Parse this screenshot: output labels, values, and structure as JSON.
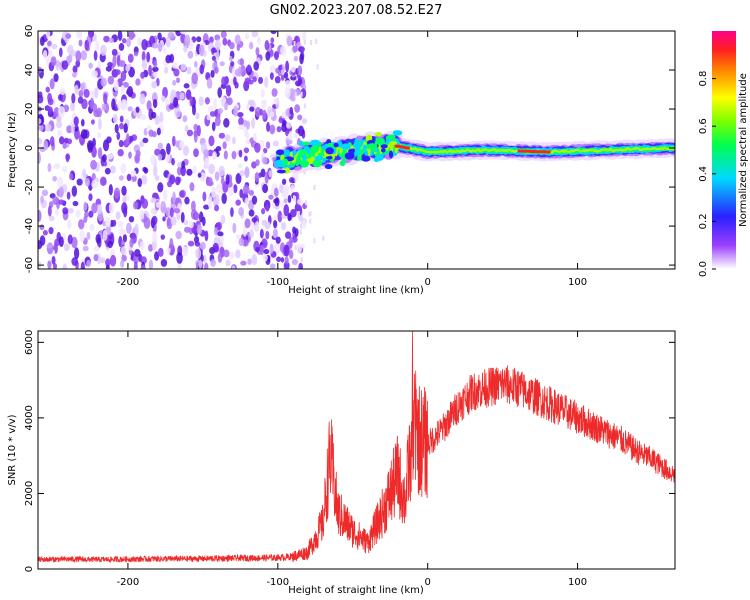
{
  "title": "GN02.2023.207.08.52.E27",
  "colors": {
    "snr_line": "#ee2a2a",
    "noise_purple": "#8a3cf0",
    "background": "#ffffff"
  },
  "chart_data": [
    {
      "type": "heatmap",
      "xlabel": "Height of straight line (km)",
      "ylabel": "Frequency (Hz)",
      "xlim": [
        -260,
        165
      ],
      "ylim": [
        -62,
        60
      ],
      "x_ticks": [
        -200,
        -100,
        0,
        100
      ],
      "x_tick_labels": [
        "-200",
        "-100",
        "0",
        "100"
      ],
      "y_ticks": [
        -60,
        -40,
        -20,
        0,
        20,
        40,
        60
      ],
      "y_tick_labels": [
        "-60",
        "-40",
        "-20",
        "0",
        "20",
        "40",
        "60"
      ],
      "colorbar": {
        "label": "Normalized spectral amplitude",
        "range": [
          0,
          1
        ],
        "ticks": [
          0.0,
          0.2,
          0.4,
          0.6,
          0.8
        ],
        "tick_labels": [
          "0.0",
          "0.2",
          "0.4",
          "0.6",
          "0.8"
        ],
        "colormap": "rainbow (white-violet-blue-cyan-green-yellow-red-magenta)"
      },
      "features": {
        "noise_region_x": [
          -260,
          -90
        ],
        "signal_band": [
          {
            "x": -100,
            "f": -6
          },
          {
            "x": -80,
            "f": -4
          },
          {
            "x": -60,
            "f": -2
          },
          {
            "x": -40,
            "f": 0
          },
          {
            "x": -20,
            "f": 1
          },
          {
            "x": 0,
            "f": -2
          },
          {
            "x": 40,
            "f": -1
          },
          {
            "x": 80,
            "f": -2
          },
          {
            "x": 120,
            "f": -1
          },
          {
            "x": 165,
            "f": 0
          }
        ]
      }
    },
    {
      "type": "line",
      "xlabel": "Height of straight line (km)",
      "ylabel": "SNR (10 * v/v)",
      "xlim": [
        -260,
        165
      ],
      "ylim": [
        0,
        6300
      ],
      "x_ticks": [
        -200,
        -100,
        0,
        100
      ],
      "x_tick_labels": [
        "-200",
        "-100",
        "0",
        "100"
      ],
      "y_ticks": [
        0,
        2000,
        4000,
        6000
      ],
      "y_tick_labels": [
        "0",
        "2000",
        "4000",
        "6000"
      ],
      "series": [
        {
          "color": "#ee2a2a",
          "x": [
            -260,
            -240,
            -220,
            -200,
            -180,
            -160,
            -140,
            -120,
            -100,
            -90,
            -80,
            -70,
            -65,
            -60,
            -50,
            -40,
            -30,
            -20,
            -15,
            -10,
            -5,
            0,
            10,
            20,
            30,
            40,
            50,
            60,
            70,
            80,
            90,
            100,
            110,
            120,
            130,
            140,
            150,
            160,
            165
          ],
          "y": [
            250,
            260,
            250,
            260,
            270,
            270,
            280,
            290,
            300,
            330,
            450,
            1200,
            3000,
            1500,
            1000,
            700,
            1500,
            2500,
            1800,
            3800,
            3400,
            3300,
            3700,
            4300,
            4700,
            4800,
            4900,
            4800,
            4600,
            4400,
            4200,
            4000,
            3800,
            3600,
            3400,
            3100,
            2900,
            2600,
            2500
          ]
        }
      ]
    }
  ]
}
